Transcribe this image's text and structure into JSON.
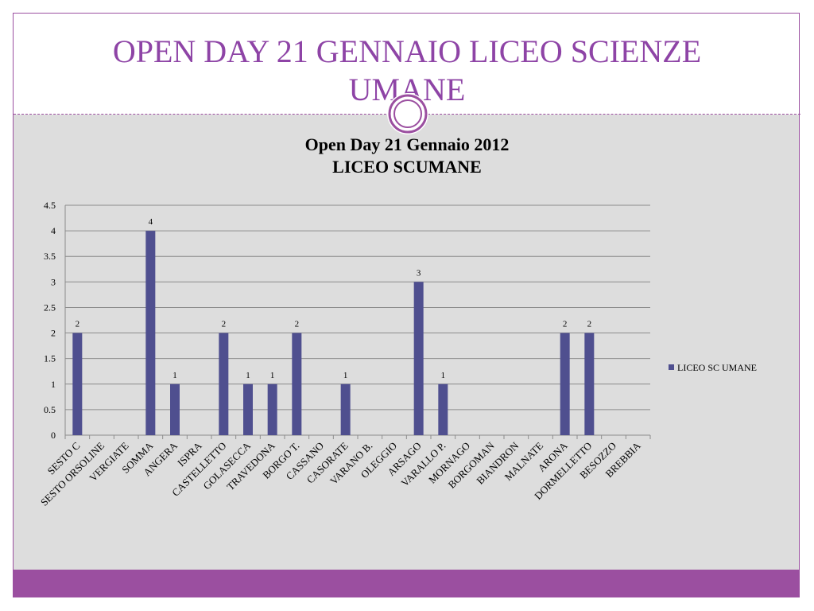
{
  "slide": {
    "title_line1": "OPEN  DAY 21 GENNAIO LICEO SCIENZE",
    "title_line2": "UMANE"
  },
  "colors": {
    "accent": "#9b4fa0",
    "title": "#8e44a6",
    "bar": "#4f4f8f",
    "panel": "#dddddd"
  },
  "chart_data": {
    "type": "bar",
    "title": "Open Day 21 Gennaio 2012",
    "subtitle": "LICEO SCUMANE",
    "categories": [
      "SESTO C",
      "SESTO ORSOLINE",
      "VERGIATE",
      "SOMMA",
      "ANGERA",
      "ISPRA",
      "CASTELLETTO",
      "GOLASECCA",
      "TRAVEDONA",
      "BORGO T.",
      "CASSANO",
      "CASORATE",
      "VARANO B.",
      "OLEGGIO",
      "ARSAGO",
      "VARALLO P.",
      "MORNAGO",
      "BORGOMAN",
      "BIANDRON",
      "MALNATE",
      "ARONA",
      "DORMELLETTO",
      "BESOZZO",
      "BREBBIA"
    ],
    "series": [
      {
        "name": "LICEO SC UMANE",
        "values": [
          2,
          0,
          0,
          4,
          1,
          0,
          2,
          1,
          1,
          2,
          0,
          1,
          0,
          0,
          3,
          1,
          0,
          0,
          0,
          0,
          2,
          2,
          0,
          0
        ],
        "data_labels": [
          "2",
          "",
          "",
          "4",
          "1",
          "",
          "2",
          "1",
          "1",
          "2",
          "",
          "1",
          "",
          "",
          "3",
          "1",
          "",
          "",
          "",
          "",
          "2",
          "2",
          "",
          ""
        ]
      }
    ],
    "ylim": [
      0,
      4.5
    ],
    "yticks": [
      "0",
      "0.5",
      "1",
      "1.5",
      "2",
      "2.5",
      "3",
      "3.5",
      "4",
      "4.5"
    ],
    "grid": true,
    "legend_position": "right"
  }
}
